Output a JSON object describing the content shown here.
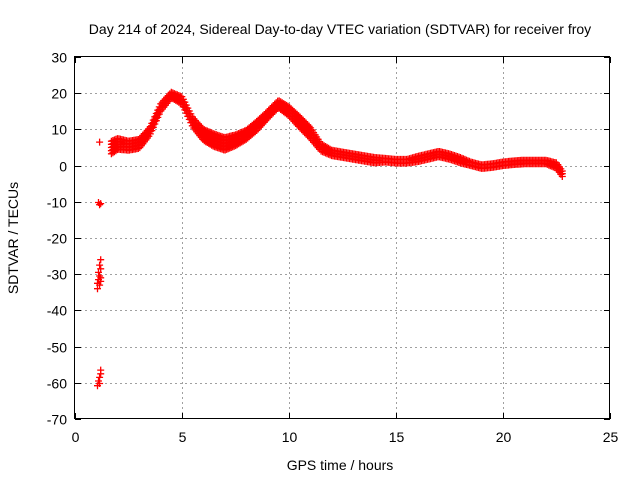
{
  "chart_data": {
    "type": "scatter",
    "title": "Day 214 of 2024, Sidereal Day-to-day VTEC variation (SDTVAR) for receiver froy",
    "xlabel": "GPS time / hours",
    "ylabel": "SDTVAR / TECUs",
    "xlim": [
      0,
      25
    ],
    "ylim": [
      -70,
      30
    ],
    "xticks": [
      0,
      5,
      10,
      15,
      20,
      25
    ],
    "yticks": [
      -70,
      -60,
      -50,
      -40,
      -30,
      -20,
      -10,
      0,
      10,
      20,
      30
    ],
    "grid": true,
    "marker": "+",
    "colors": {
      "series": "#ff0000",
      "grid": "#a0a0a0",
      "axis": "#000000"
    },
    "outliers": [
      {
        "x": 1.15,
        "y": 6.5
      },
      {
        "x": 1.1,
        "y": -10.2
      },
      {
        "x": 1.15,
        "y": -10.8
      },
      {
        "x": 1.2,
        "y": -10.5
      },
      {
        "x": 1.2,
        "y": -26
      },
      {
        "x": 1.15,
        "y": -27.5
      },
      {
        "x": 1.2,
        "y": -28.5
      },
      {
        "x": 1.1,
        "y": -29.5
      },
      {
        "x": 1.15,
        "y": -30.5
      },
      {
        "x": 1.2,
        "y": -31
      },
      {
        "x": 1.1,
        "y": -31.5
      },
      {
        "x": 1.2,
        "y": -32
      },
      {
        "x": 1.05,
        "y": -32.5
      },
      {
        "x": 1.15,
        "y": -33
      },
      {
        "x": 1.05,
        "y": -34
      },
      {
        "x": 1.2,
        "y": -56.5
      },
      {
        "x": 1.2,
        "y": -57.5
      },
      {
        "x": 1.15,
        "y": -58.5
      },
      {
        "x": 1.1,
        "y": -59.5
      },
      {
        "x": 1.15,
        "y": -60.2
      },
      {
        "x": 1.05,
        "y": -60.8
      }
    ],
    "series": [
      {
        "name": "SDTVAR",
        "x": [
          1.7,
          2.0,
          2.5,
          3.0,
          3.5,
          4.0,
          4.5,
          5.0,
          5.5,
          6.0,
          6.5,
          7.0,
          7.5,
          8.0,
          8.5,
          9.0,
          9.5,
          10.0,
          10.5,
          11.0,
          11.5,
          12.0,
          12.5,
          13.0,
          13.5,
          14.0,
          14.5,
          15.0,
          15.5,
          16.0,
          16.5,
          17.0,
          17.5,
          18.0,
          18.5,
          19.0,
          19.5,
          20.0,
          20.5,
          21.0,
          21.5,
          22.0,
          22.5,
          22.8
        ],
        "y": [
          5.0,
          6.0,
          5.5,
          6.0,
          9.5,
          16.0,
          19.5,
          18.0,
          12.0,
          8.5,
          7.0,
          6.0,
          7.0,
          8.5,
          11.0,
          14.0,
          17.0,
          15.0,
          12.0,
          9.0,
          5.0,
          3.5,
          3.0,
          2.5,
          2.0,
          1.5,
          1.5,
          1.2,
          1.2,
          1.8,
          2.5,
          3.2,
          2.5,
          1.5,
          0.5,
          -0.3,
          0.0,
          0.5,
          0.8,
          1.0,
          1.0,
          1.0,
          0.0,
          -2.5
        ],
        "band": [
          3.5,
          3.0,
          2.5,
          2.5,
          2.0,
          2.0,
          1.5,
          2.0,
          2.5,
          3.0,
          3.5,
          3.5,
          3.0,
          2.5,
          2.5,
          2.0,
          2.0,
          2.5,
          3.0,
          3.0,
          2.0,
          1.5,
          1.5,
          1.5,
          1.5,
          1.5,
          1.0,
          1.0,
          1.0,
          1.5,
          1.5,
          1.5,
          1.5,
          1.5,
          1.0,
          1.0,
          1.0,
          1.0,
          1.0,
          1.0,
          1.0,
          1.0,
          1.5,
          1.5
        ]
      }
    ]
  }
}
